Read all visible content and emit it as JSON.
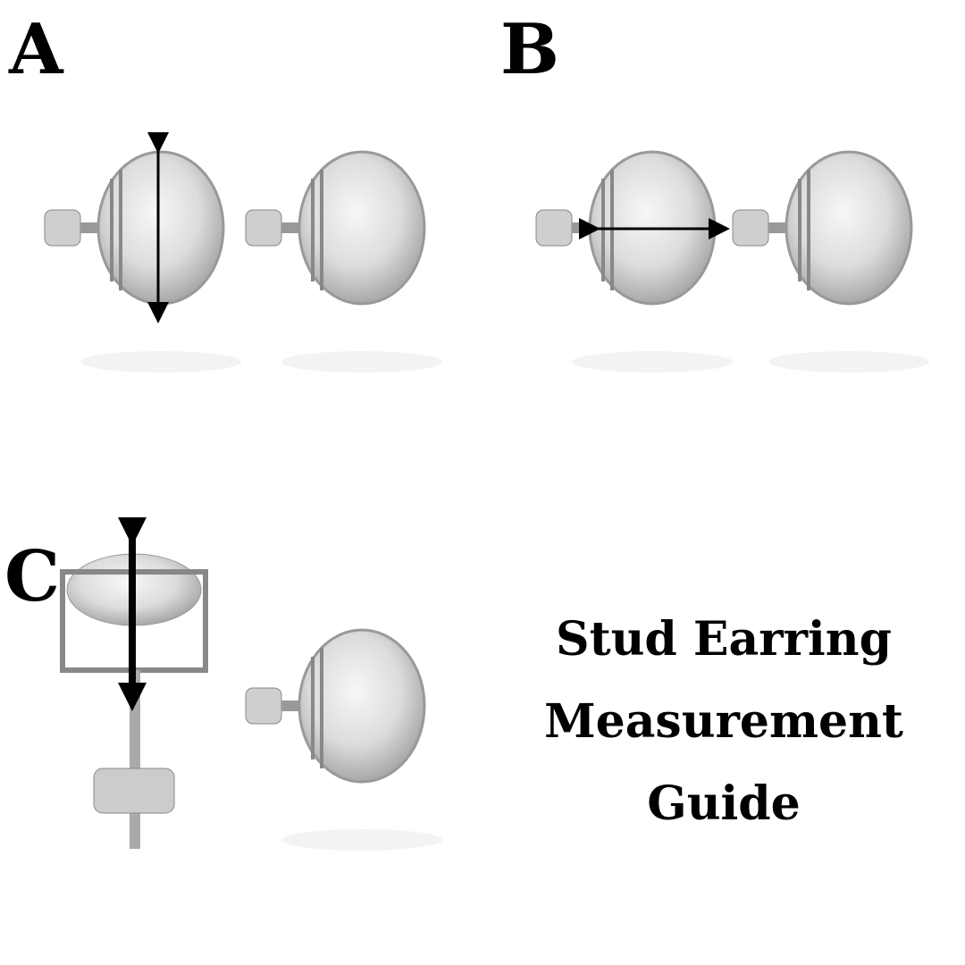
{
  "labels": {
    "a": "A",
    "b": "B",
    "c": "C"
  },
  "title_lines": [
    "Stud Earring",
    "Measurement",
    "Guide"
  ],
  "colors": {
    "arrow": "#000000",
    "metal": "#9a9a9a",
    "stone": "#e6e6e6"
  }
}
